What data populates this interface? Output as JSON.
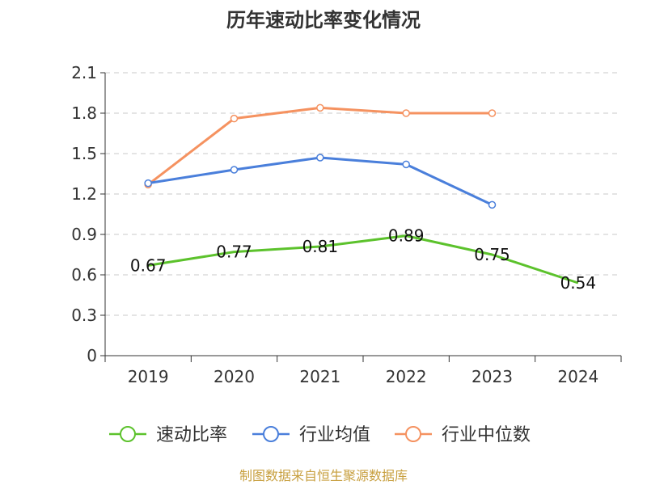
{
  "chart_data": {
    "type": "line",
    "title": "历年速动比率变化情况",
    "categories": [
      "2019",
      "2020",
      "2021",
      "2022",
      "2023",
      "2024"
    ],
    "ylim": [
      0,
      2.1
    ],
    "yticks": [
      "0",
      "0.3",
      "0.6",
      "0.9",
      "1.2",
      "1.5",
      "1.8",
      "2.1"
    ],
    "grid": true,
    "legend_position": "bottom",
    "series": [
      {
        "name": "速动比率",
        "color": "#5cc22c",
        "values": [
          0.67,
          0.77,
          0.81,
          0.89,
          0.75,
          0.54
        ],
        "labels": [
          "0.67",
          "0.77",
          "0.81",
          "0.89",
          "0.75",
          "0.54"
        ]
      },
      {
        "name": "行业均值",
        "color": "#4a7fdb",
        "values": [
          1.28,
          1.38,
          1.47,
          1.42,
          1.12,
          null
        ]
      },
      {
        "name": "行业中位数",
        "color": "#f59260",
        "values": [
          1.27,
          1.76,
          1.84,
          1.8,
          1.8,
          null
        ]
      }
    ]
  },
  "source": {
    "text": "制图数据来自恒生聚源数据库",
    "color": "#c8a040"
  }
}
